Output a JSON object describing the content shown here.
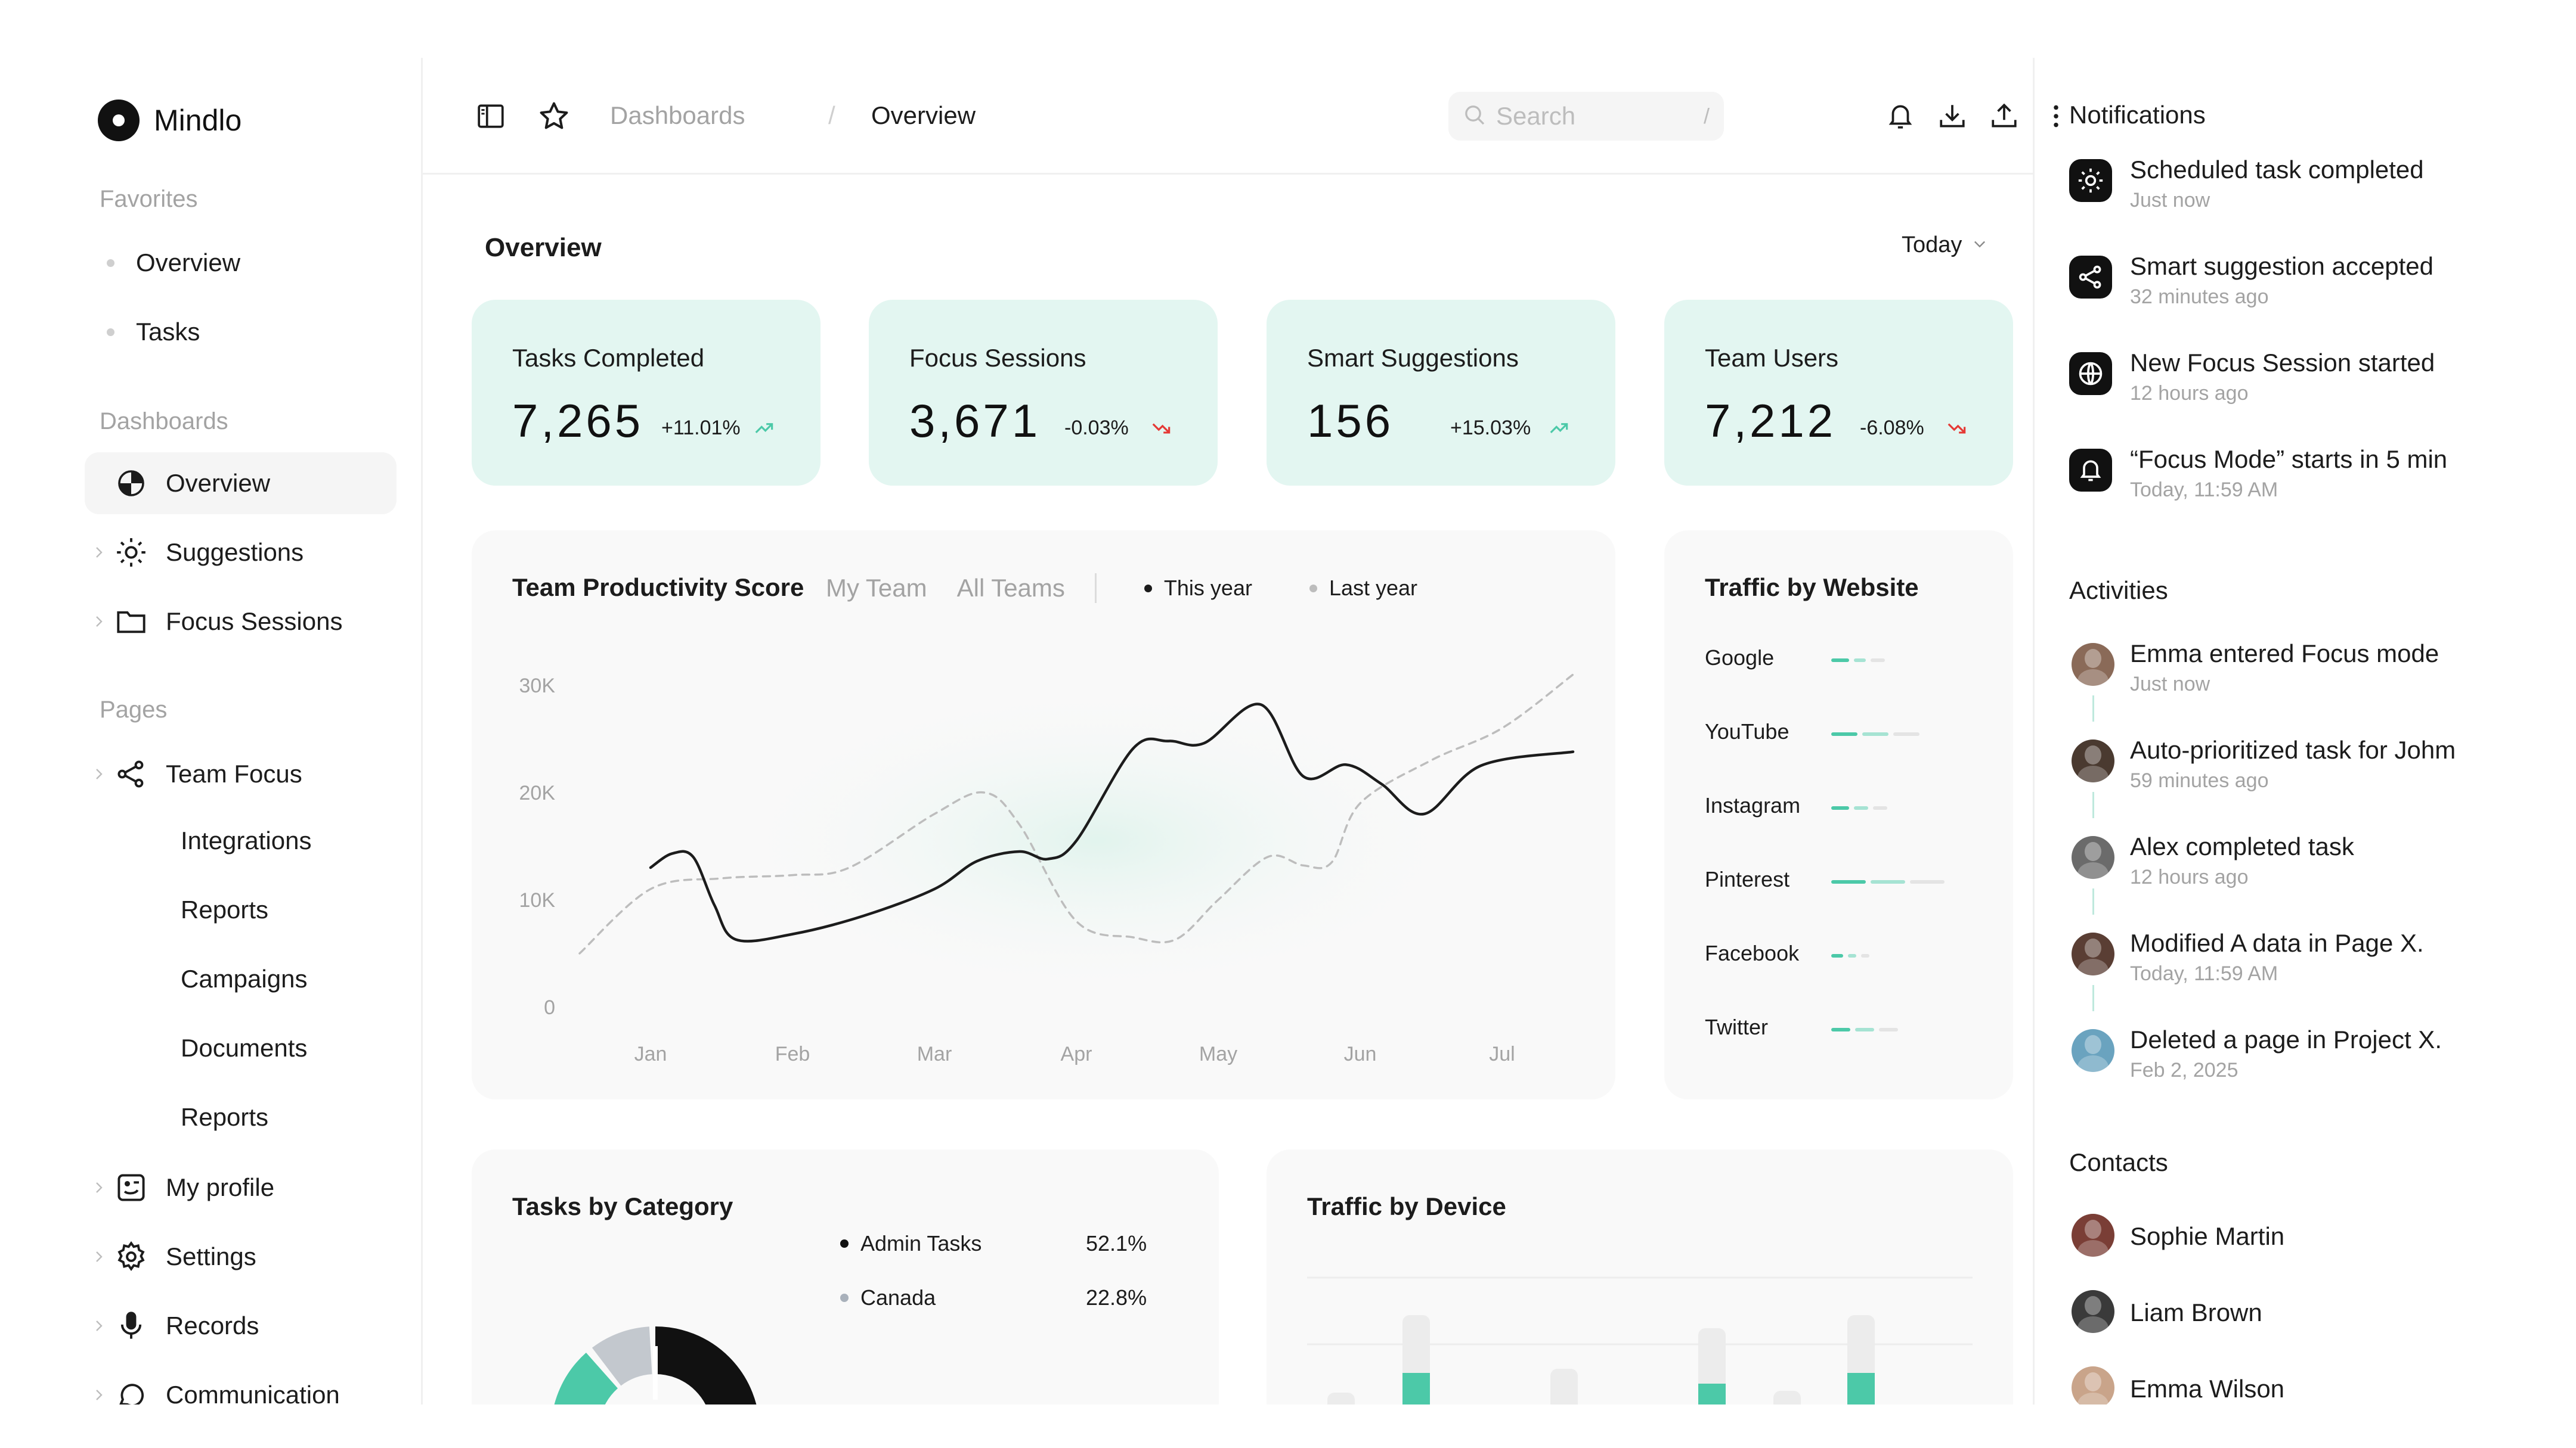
{
  "brand": {
    "name": "Mindlo"
  },
  "sidebar": {
    "favorites_title": "Favorites",
    "favorites": [
      "Overview",
      "Tasks"
    ],
    "dashboards_title": "Dashboards",
    "dashboards": [
      {
        "label": "Overview",
        "icon": "pie-chart-icon",
        "active": true
      },
      {
        "label": "Suggestions",
        "icon": "sun-icon"
      },
      {
        "label": "Focus Sessions",
        "icon": "folder-icon"
      }
    ],
    "pages_title": "Pages",
    "team_focus": "Team Focus",
    "team_focus_sub": [
      "Integrations",
      "Reports",
      "Campaigns",
      "Documents",
      "Reports"
    ],
    "pages_more": [
      {
        "label": "My profile",
        "icon": "profile-icon"
      },
      {
        "label": "Settings",
        "icon": "gear-icon"
      },
      {
        "label": "Records",
        "icon": "microphone-icon"
      },
      {
        "label": "Communication",
        "icon": "chat-icon"
      }
    ]
  },
  "header": {
    "breadcrumb": [
      "Dashboards",
      "Overview"
    ],
    "breadcrumb_sep": "/",
    "search_placeholder": "Search",
    "search_shortcut": "/"
  },
  "overview": {
    "title": "Overview",
    "range": "Today"
  },
  "kpis": [
    {
      "label": "Tasks Completed",
      "value": "7,265",
      "change": "+11.01%",
      "trend": "up"
    },
    {
      "label": "Focus Sessions",
      "value": "3,671",
      "change": "-0.03%",
      "trend": "down"
    },
    {
      "label": "Smart Suggestions",
      "value": "156",
      "change": "+15.03%",
      "trend": "up"
    },
    {
      "label": "Team Users",
      "value": "7,212",
      "change": "-6.08%",
      "trend": "down"
    }
  ],
  "productivity": {
    "title": "Team Productivity Score",
    "tabs": [
      "My Team",
      "All Teams"
    ],
    "legend": [
      "This year",
      "Last year"
    ]
  },
  "chart_data": {
    "type": "line",
    "title": "Team Productivity Score",
    "categories": [
      "Jan",
      "Feb",
      "Mar",
      "Apr",
      "May",
      "Jun",
      "Jul"
    ],
    "y_ticks": [
      "0",
      "10K",
      "20K",
      "30K"
    ],
    "ylim": [
      0,
      30000
    ],
    "grid": false,
    "legend_position": "top",
    "series": [
      {
        "name": "This year",
        "style": "solid",
        "color": "#1c1c1c",
        "x": [
          0,
          0.15,
          0.3,
          0.45,
          0.6,
          1,
          1.5,
          2,
          2.3,
          2.6,
          2.8,
          3,
          3.4,
          3.65,
          3.9,
          4.3,
          4.6,
          4.9,
          5.15,
          5.45,
          5.85,
          6.5
        ],
        "y": [
          13000,
          14300,
          14000,
          9500,
          6300,
          6800,
          8500,
          11000,
          13600,
          14500,
          13800,
          15500,
          24100,
          24800,
          24600,
          28200,
          21500,
          22600,
          20800,
          18000,
          22500,
          23800
        ]
      },
      {
        "name": "Last year",
        "style": "dashed",
        "color": "#bdbdbd",
        "x": [
          -0.5,
          0,
          0.5,
          1,
          1.4,
          2,
          2.35,
          2.6,
          3,
          3.4,
          3.7,
          4,
          4.35,
          4.6,
          4.8,
          5,
          5.5,
          6,
          6.5
        ],
        "y": [
          5000,
          11000,
          12000,
          12300,
          13000,
          18000,
          20000,
          17000,
          8000,
          6500,
          6300,
          10000,
          14000,
          13200,
          13500,
          19000,
          23000,
          26000,
          31000
        ]
      }
    ]
  },
  "traffic_website": {
    "title": "Traffic by Website",
    "sites": [
      {
        "name": "Google",
        "segs": [
          30,
          20,
          24
        ]
      },
      {
        "name": "YouTube",
        "segs": [
          44,
          44,
          44
        ]
      },
      {
        "name": "Instagram",
        "segs": [
          30,
          24,
          24
        ]
      },
      {
        "name": "Pinterest",
        "segs": [
          58,
          58,
          58
        ]
      },
      {
        "name": "Facebook",
        "segs": [
          20,
          14,
          14
        ]
      },
      {
        "name": "Twitter",
        "segs": [
          32,
          32,
          32
        ]
      }
    ]
  },
  "tasks_by_category": {
    "title": "Tasks by Category",
    "items": [
      {
        "label": "Admin Tasks",
        "pct": "52.1%",
        "color": "#111111"
      },
      {
        "label": "Canada",
        "pct": "22.8%",
        "color": "#a9b1bb"
      }
    ]
  },
  "traffic_device": {
    "title": "Traffic by Device"
  },
  "notifications": {
    "title": "Notifications",
    "items": [
      {
        "text": "Scheduled task completed",
        "time": "Just now",
        "icon": "sun-icon"
      },
      {
        "text": "Smart suggestion accepted",
        "time": "32 minutes ago",
        "icon": "share-icon"
      },
      {
        "text": "New Focus Session started",
        "time": "12 hours ago",
        "icon": "globe-icon"
      },
      {
        "text": "“Focus Mode” starts in 5 min",
        "time": "Today, 11:59 AM",
        "icon": "bell-icon"
      }
    ]
  },
  "activities": {
    "title": "Activities",
    "items": [
      {
        "text": "Emma entered Focus mode",
        "time": "Just now",
        "color": "#8a6a58"
      },
      {
        "text": "Auto-prioritized task for Johm",
        "time": "59 minutes ago",
        "color": "#4a3a30"
      },
      {
        "text": "Alex completed task",
        "time": "12 hours ago",
        "color": "#6b6b6b"
      },
      {
        "text": "Modified A data in Page X.",
        "time": "Today, 11:59 AM",
        "color": "#5a3e34"
      },
      {
        "text": "Deleted a page in Project X.",
        "time": "Feb 2, 2025",
        "color": "#6aa3bf"
      }
    ]
  },
  "contacts": {
    "title": "Contacts",
    "items": [
      {
        "name": "Sophie Martin",
        "color": "#7a3e36"
      },
      {
        "name": "Liam Brown",
        "color": "#3a3a3a"
      },
      {
        "name": "Emma Wilson",
        "color": "#c9a48a"
      }
    ]
  }
}
